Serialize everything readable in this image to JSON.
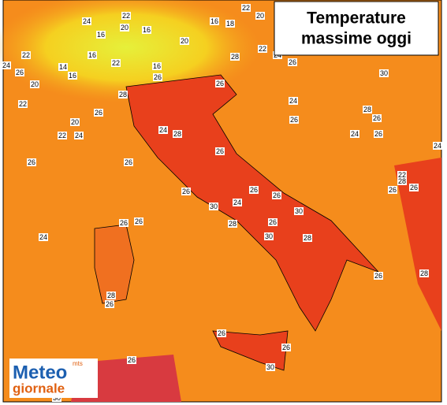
{
  "header": {
    "title_line1": "Temperature",
    "title_line2": "massime oggi"
  },
  "logo": {
    "name": "Meteo",
    "sub": "giornale",
    "tag": "mts"
  },
  "temperature_labels": [
    24,
    22,
    16,
    20,
    16,
    20,
    16,
    18,
    22,
    20,
    22,
    26,
    24,
    16,
    14,
    16,
    20,
    22,
    16,
    26,
    28,
    22,
    24,
    26,
    30,
    26,
    22,
    28,
    20,
    26,
    24,
    22,
    24,
    28,
    24,
    28,
    26,
    26,
    24,
    26,
    24,
    26,
    26,
    26,
    22,
    28,
    26,
    26,
    26,
    30,
    24,
    26,
    26,
    30,
    28,
    26,
    30,
    28,
    26,
    26,
    24,
    26,
    28,
    28,
    26,
    26,
    26,
    26,
    30,
    30
  ]
}
